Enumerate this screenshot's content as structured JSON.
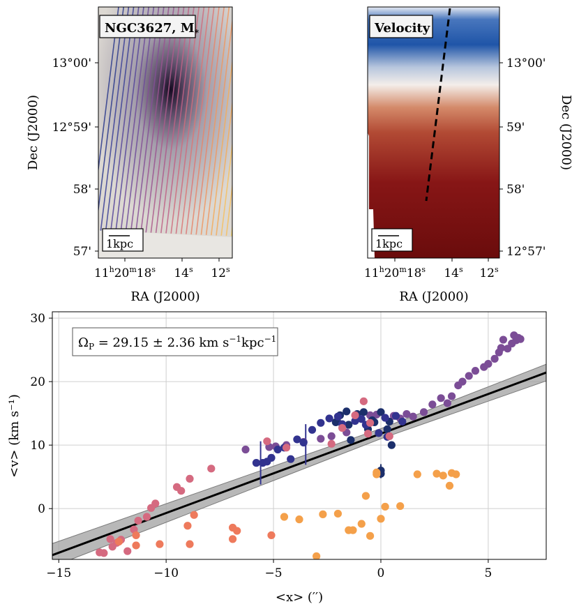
{
  "colors": {
    "panel_left_base": "#d9d6d0",
    "velocity_red": "#7a0d0d",
    "velocity_blue": "#1f55a8",
    "fit_line": "#000000",
    "fit_band": "#9a9a9a"
  },
  "icons": [
    "scale-bar-icon",
    "slit-line-icon",
    "kinematic-axis-icon"
  ],
  "left_panel": {
    "label": "NGC3627, M",
    "label_sub": "*",
    "scalebar": "1kpc",
    "xlabel": "RA (J2000)",
    "ylabel": "Dec (J2000)",
    "xticks": [
      {
        "base": "11",
        "s1": "h",
        "mid": "20",
        "s2": "m",
        "end": "18",
        "s3": "s"
      },
      {
        "base": "14",
        "s3": "s"
      },
      {
        "base": "12",
        "s3": "s"
      }
    ],
    "yticks": [
      "13°00'",
      "12°59'",
      "58'",
      "57'"
    ]
  },
  "right_panel": {
    "label": "Velocity",
    "scalebar": "1kpc",
    "xlabel": "RA (J2000)",
    "ylabel": "Dec (J2000)",
    "xticks": [
      {
        "base": "11",
        "s1": "h",
        "mid": "20",
        "s2": "m",
        "end": "18",
        "s3": "s"
      },
      {
        "base": "14",
        "s3": "s"
      },
      {
        "base": "12",
        "s3": "s"
      }
    ],
    "yticks": [
      "13°00'",
      "59'",
      "58'",
      "12°57'"
    ]
  },
  "chart_data": {
    "type": "scatter",
    "annotation": "Ω_P = 29.15 ± 2.36 km s⁻¹ kpc⁻¹",
    "annotation_parts": {
      "pre": "Ω",
      "sub": "P",
      "eq": " = 29.15 ± 2.36 km s",
      "e1": "−1",
      "kpc": "kpc",
      "e2": "−1"
    },
    "xlabel": "<x> (′′)",
    "ylabel": "<v> (km s⁻¹)",
    "xlim": [
      -15.3,
      7.7
    ],
    "ylim": [
      -8,
      31
    ],
    "xticks": [
      -15,
      -10,
      -5,
      0,
      5
    ],
    "yticks": [
      0,
      10,
      20,
      30
    ],
    "grid": true,
    "fit": {
      "slope": 1.25,
      "intercept": 11.8,
      "band": 0.8
    },
    "series": [
      {
        "name": "upper-purple",
        "color": "#7b4d96",
        "points": [
          [
            -6.3,
            9.3
          ],
          [
            -5.2,
            9.7
          ],
          [
            -4.9,
            9.8
          ],
          [
            -4.4,
            10.0
          ],
          [
            -3.6,
            10.5
          ],
          [
            -2.8,
            11.0
          ],
          [
            -2.3,
            11.4
          ],
          [
            -1.6,
            12.0
          ],
          [
            -0.5,
            14.7
          ],
          [
            -0.2,
            14.8
          ],
          [
            0.6,
            14.6
          ],
          [
            0.9,
            14.2
          ],
          [
            1.2,
            14.9
          ],
          [
            1.5,
            14.5
          ],
          [
            2.0,
            15.2
          ],
          [
            2.4,
            16.4
          ],
          [
            2.8,
            17.4
          ],
          [
            3.1,
            16.6
          ],
          [
            3.3,
            17.7
          ],
          [
            3.6,
            19.4
          ],
          [
            3.8,
            20.0
          ],
          [
            4.1,
            20.9
          ],
          [
            4.4,
            21.7
          ],
          [
            4.8,
            22.3
          ],
          [
            5.0,
            22.8
          ],
          [
            5.3,
            23.6
          ],
          [
            5.5,
            24.6
          ],
          [
            5.9,
            25.2
          ],
          [
            6.1,
            26.0
          ],
          [
            6.3,
            26.5
          ],
          [
            6.5,
            26.7
          ],
          [
            5.7,
            26.6
          ],
          [
            6.2,
            27.3
          ],
          [
            5.6,
            25.3
          ],
          [
            6.4,
            26.9
          ]
        ]
      },
      {
        "name": "upper-navy",
        "color": "#1c2f6b",
        "points": [
          [
            -2.1,
            13.6
          ],
          [
            -1.9,
            14.7
          ],
          [
            -1.6,
            15.3
          ],
          [
            -1.4,
            10.8
          ],
          [
            -1.1,
            14.9
          ],
          [
            -0.8,
            15.2
          ],
          [
            -0.6,
            12.5
          ],
          [
            -0.3,
            13.6
          ],
          [
            0.0,
            15.2
          ],
          [
            0.3,
            12.5
          ],
          [
            0.4,
            13.7
          ],
          [
            0.5,
            10.0
          ],
          [
            0.0,
            5.5
          ],
          [
            0.0,
            6.0
          ],
          [
            -1.5,
            13.2
          ],
          [
            -0.4,
            13.9
          ]
        ]
      },
      {
        "name": "upper-indigo",
        "color": "#32338f",
        "points": [
          [
            -5.8,
            7.2
          ],
          [
            -5.5,
            7.2
          ],
          [
            -5.3,
            7.4
          ],
          [
            -5.1,
            8.0
          ],
          [
            -4.8,
            9.3
          ],
          [
            -4.5,
            9.6
          ],
          [
            -4.2,
            7.8
          ],
          [
            -3.9,
            10.9
          ],
          [
            -3.6,
            10.4
          ],
          [
            -3.2,
            12.4
          ],
          [
            -2.8,
            13.5
          ],
          [
            -2.4,
            14.2
          ],
          [
            -2.0,
            14.5
          ],
          [
            -1.8,
            13.3
          ],
          [
            -1.2,
            13.8
          ],
          [
            -0.9,
            14.1
          ],
          [
            -0.7,
            13.2
          ],
          [
            0.2,
            14.3
          ],
          [
            0.7,
            14.6
          ],
          [
            1.0,
            13.7
          ],
          [
            -0.1,
            11.9
          ],
          [
            0.3,
            11.3
          ]
        ]
      },
      {
        "name": "lower-pink",
        "color": "#d56a80",
        "points": [
          [
            -13.1,
            -6.9
          ],
          [
            -12.9,
            -7.0
          ],
          [
            -12.6,
            -4.8
          ],
          [
            -12.3,
            -5.4
          ],
          [
            -12.1,
            -4.9
          ],
          [
            -11.8,
            -6.7
          ],
          [
            -11.5,
            -3.3
          ],
          [
            -11.3,
            -1.9
          ],
          [
            -10.9,
            -1.3
          ],
          [
            -10.7,
            0.1
          ],
          [
            -10.5,
            0.8
          ],
          [
            -9.5,
            3.4
          ],
          [
            -9.3,
            2.8
          ],
          [
            -8.9,
            4.7
          ],
          [
            -7.9,
            6.3
          ],
          [
            -5.3,
            10.6
          ],
          [
            -4.4,
            9.6
          ],
          [
            -2.3,
            10.2
          ],
          [
            -1.8,
            12.7
          ],
          [
            -1.2,
            14.7
          ],
          [
            -0.8,
            16.9
          ],
          [
            -0.6,
            11.8
          ],
          [
            0.4,
            11.4
          ],
          [
            -0.5,
            13.5
          ],
          [
            -12.5,
            -6.0
          ]
        ]
      },
      {
        "name": "lower-salmon",
        "color": "#ee7a5c",
        "points": [
          [
            -12.2,
            -5.2
          ],
          [
            -11.4,
            -4.2
          ],
          [
            -11.4,
            -5.8
          ],
          [
            -10.3,
            -5.6
          ],
          [
            -9.0,
            -2.7
          ],
          [
            -8.9,
            -5.6
          ],
          [
            -8.7,
            -1.0
          ],
          [
            -6.9,
            -3.0
          ],
          [
            -6.9,
            -4.8
          ],
          [
            -6.7,
            -3.5
          ],
          [
            -5.1,
            -4.2
          ]
        ]
      },
      {
        "name": "lower-orange",
        "color": "#f4a04a",
        "points": [
          [
            -4.5,
            -1.3
          ],
          [
            -3.8,
            -1.7
          ],
          [
            -2.7,
            -0.9
          ],
          [
            -2.0,
            -0.8
          ],
          [
            -1.5,
            -3.4
          ],
          [
            -1.3,
            -3.4
          ],
          [
            -0.9,
            -2.4
          ],
          [
            -0.7,
            2.0
          ],
          [
            -0.5,
            -4.3
          ],
          [
            -0.2,
            5.4
          ],
          [
            -0.2,
            5.7
          ],
          [
            0.0,
            -1.6
          ],
          [
            0.2,
            0.3
          ],
          [
            0.9,
            0.4
          ],
          [
            1.7,
            5.4
          ],
          [
            2.6,
            5.5
          ],
          [
            2.9,
            5.2
          ],
          [
            3.2,
            3.6
          ],
          [
            3.3,
            5.6
          ],
          [
            3.5,
            5.4
          ],
          [
            -3.0,
            -7.5
          ]
        ]
      }
    ],
    "errorbars": [
      {
        "x": -5.6,
        "y": 7.2,
        "lo": 3.8,
        "hi": 10.6,
        "color": "#32338f"
      },
      {
        "x": -3.5,
        "y": 9.5,
        "lo": 6.9,
        "hi": 13.3,
        "color": "#32338f"
      },
      {
        "x": -1.9,
        "y": 14.0,
        "lo": 12.8,
        "hi": 15.2,
        "color": "#1c2f6b"
      },
      {
        "x": 0.0,
        "y": 5.6,
        "lo": 4.8,
        "hi": 7.0,
        "color": "#1c2f6b"
      }
    ]
  }
}
